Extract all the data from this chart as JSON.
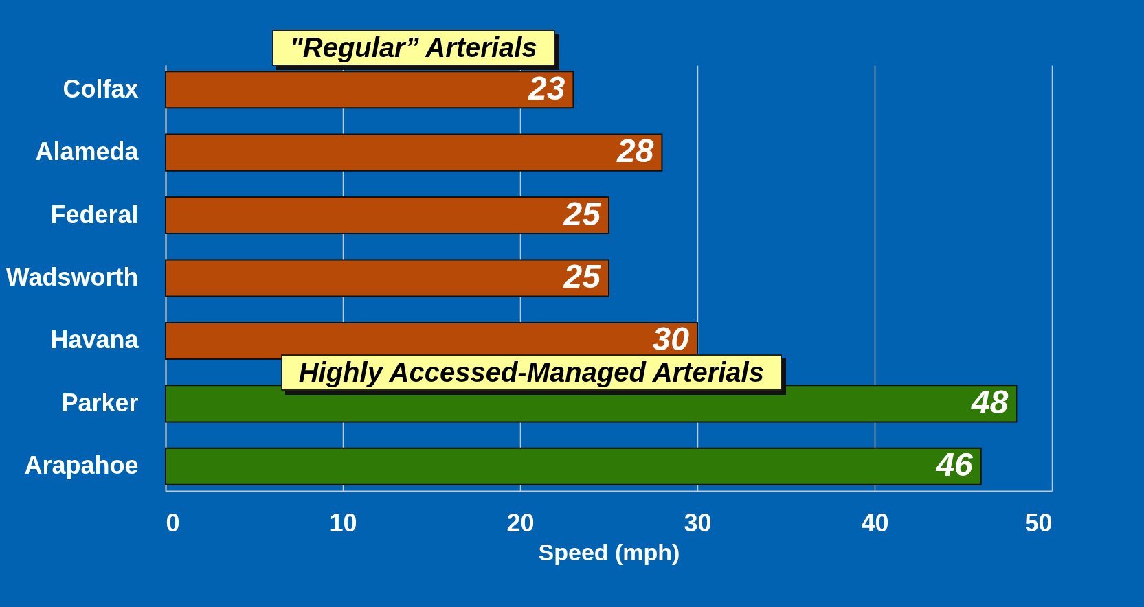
{
  "chart_data": {
    "type": "bar",
    "orientation": "horizontal",
    "categories": [
      "Colfax",
      "Alameda",
      "Federal",
      "Wadsworth",
      "Havana",
      "Parker",
      "Arapahoe"
    ],
    "values": [
      23,
      28,
      25,
      25,
      30,
      48,
      46
    ],
    "colors": [
      "#b84a08",
      "#b84a08",
      "#b84a08",
      "#b84a08",
      "#b84a08",
      "#2f7a06",
      "#2f7a06"
    ],
    "xlabel": "Speed (mph)",
    "xlim": [
      0,
      50
    ],
    "xticks": [
      0,
      10,
      20,
      30,
      40,
      50
    ],
    "grid": "x",
    "data_labels": true,
    "annotations": [
      "\"Regular” Arterials",
      "Highly Accessed-Managed Arterials"
    ]
  }
}
